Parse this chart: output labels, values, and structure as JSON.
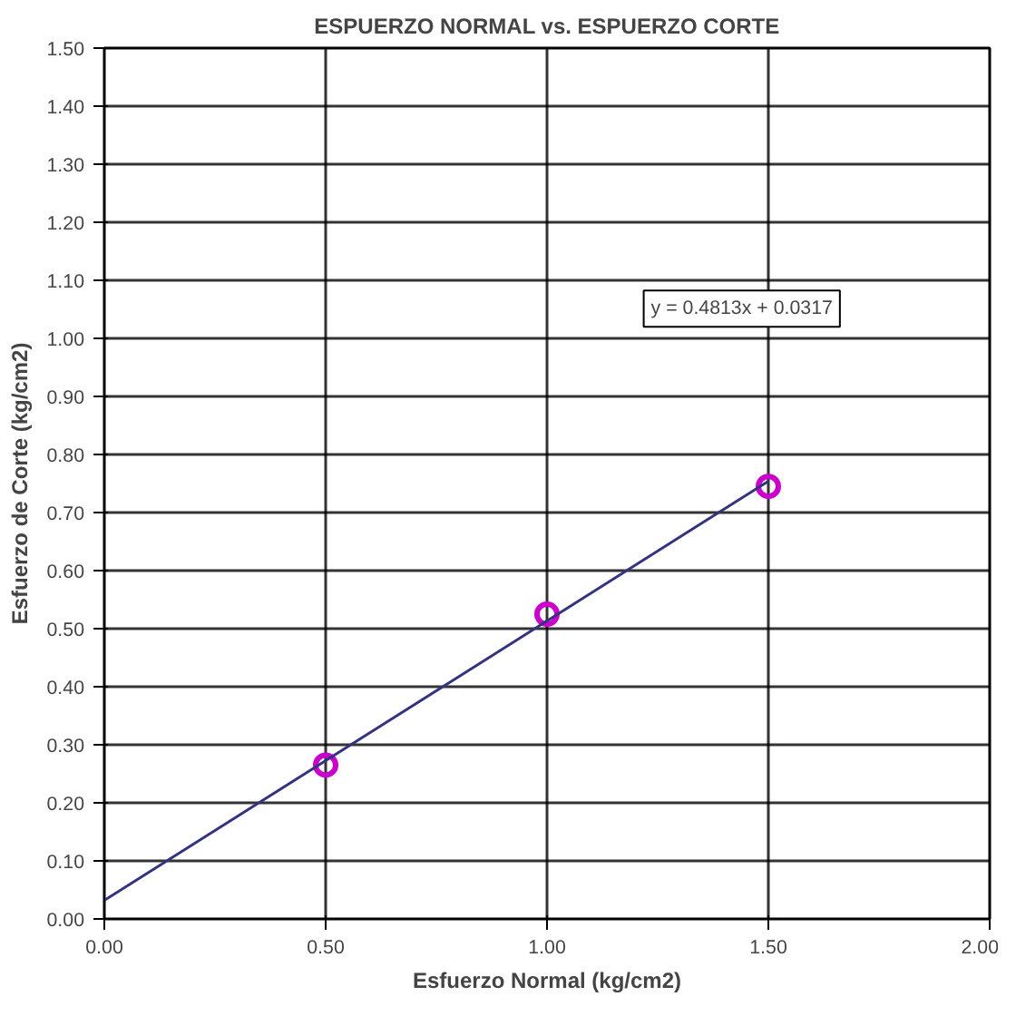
{
  "chart_data": {
    "type": "scatter",
    "title": "ESPUERZO NORMAL vs. ESPUERZO CORTE",
    "xlabel": "Esfuerzo Normal (kg/cm2)",
    "ylabel": "Esfuerzo de Corte (kg/cm2)",
    "x": [
      0.5,
      1.0,
      1.5
    ],
    "series": [
      {
        "color": "#cc00cc",
        "values": [
          0.265,
          0.525,
          0.745
        ],
        "marker": "circle"
      },
      {
        "type": "line",
        "color": "#333380",
        "x": [
          0,
          1.5
        ],
        "values": [
          0.032,
          0.754
        ],
        "marker": "none",
        "line_style": "solid"
      }
    ],
    "annotations": [
      "y = 0.4813x + 0.0317"
    ],
    "xlim": [
      0,
      2
    ],
    "xticks": [
      {
        "value": 0,
        "label": "0.00"
      },
      {
        "value": 0.5,
        "label": "0.50"
      },
      {
        "value": 1,
        "label": "1.00"
      },
      {
        "value": 1.5,
        "label": "1.50"
      },
      {
        "value": 2,
        "label": "2.00"
      }
    ],
    "ylim": [
      0,
      1.5
    ],
    "yticks": [
      {
        "value": 0,
        "label": "0.00"
      },
      {
        "value": 0.1,
        "label": "0.10"
      },
      {
        "value": 0.2,
        "label": "0.20"
      },
      {
        "value": 0.3,
        "label": "0.30"
      },
      {
        "value": 0.4,
        "label": "0.40"
      },
      {
        "value": 0.5,
        "label": "0.50"
      },
      {
        "value": 0.6,
        "label": "0.60"
      },
      {
        "value": 0.7,
        "label": "0.70"
      },
      {
        "value": 0.8,
        "label": "0.80"
      },
      {
        "value": 0.9,
        "label": "0.90"
      },
      {
        "value": 1.0,
        "label": "1.00"
      },
      {
        "value": 1.1,
        "label": "1.10"
      },
      {
        "value": 1.2,
        "label": "1.20"
      },
      {
        "value": 1.3,
        "label": "1.30"
      },
      {
        "value": 1.4,
        "label": "1.40"
      },
      {
        "value": 1.5,
        "label": "1.50"
      }
    ],
    "grid": true
  }
}
